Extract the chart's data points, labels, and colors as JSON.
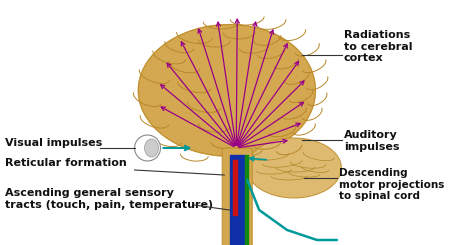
{
  "bg_color": "#f5f0e8",
  "labels": {
    "radiations": "Radiations\nto cerebral\ncortex",
    "auditory": "Auditory\nimpulses",
    "descending": "Descending\nmotor projections\nto spinal cord",
    "visual": "Visual impulses",
    "reticular": "Reticular formation",
    "ascending": "Ascending general sensory\ntracts (touch, pain, temperature)"
  },
  "arrow_color_purple": "#990088",
  "arrow_color_teal": "#009999",
  "brain_color": "#D4A850",
  "brain_color_dark": "#C09030",
  "brain_color_light": "#E8C878",
  "cerebellum_color": "#DDBA70",
  "stem_color_blue": "#1030aa",
  "stem_color_red": "#cc1111",
  "stem_color_green": "#118811",
  "stem_color_teal": "#009999",
  "text_color": "#111111",
  "font_size": 7.5,
  "gyri_color": "#b8882a",
  "line_color": "#555555",
  "bg_white": "#ffffff"
}
